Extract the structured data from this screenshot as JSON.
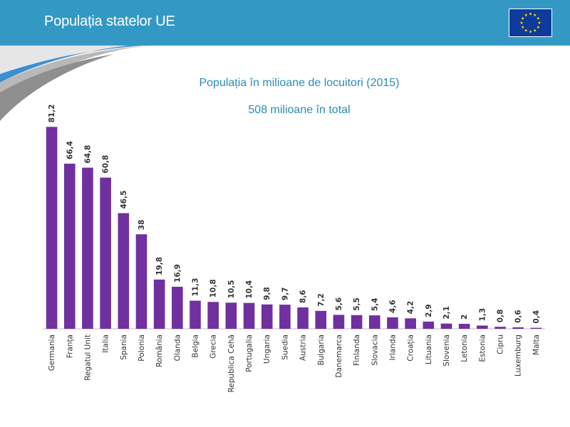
{
  "header": {
    "title": "Populația statelor UE",
    "flag_icon": "eu-flag-icon",
    "colors": {
      "bar": "#3399c4",
      "flag": "#0e3a9c",
      "stars": "#ffdd00"
    }
  },
  "chart_data": {
    "type": "bar",
    "title": "Populația în milioane de locuitori (2015)",
    "subtitle": "508 milioane în total",
    "xlabel": "",
    "ylabel": "",
    "grid": false,
    "legend": "none",
    "ylim": [
      0,
      85
    ],
    "bar_color": "#7030a0",
    "categories": [
      "Germania",
      "Franța",
      "Regatul Unit",
      "Italia",
      "Spania",
      "Polonia",
      "România",
      "Olanda",
      "Belgia",
      "Grecia",
      "Republica Cehă",
      "Portugalia",
      "Ungaria",
      "Suedia",
      "Austria",
      "Bulgaria",
      "Danemarca",
      "Finlanda",
      "Slovacia",
      "Irlanda",
      "Croația",
      "Lituania",
      "Slovenia",
      "Letonia",
      "Estonia",
      "Cipru",
      "Luxemburg",
      "Malta"
    ],
    "values": [
      81.2,
      66.4,
      64.8,
      60.8,
      46.5,
      38,
      19.8,
      16.9,
      11.3,
      10.8,
      10.5,
      10.4,
      9.8,
      9.7,
      8.6,
      7.2,
      5.6,
      5.5,
      5.4,
      4.6,
      4.2,
      2.9,
      2.1,
      2,
      1.3,
      0.8,
      0.6,
      0.4
    ],
    "value_labels": [
      "81,2",
      "66,4",
      "64,8",
      "60,8",
      "46,5",
      "38",
      "19,8",
      "16,9",
      "11,3",
      "10,8",
      "10,5",
      "10,4",
      "9,8",
      "9,7",
      "8,6",
      "7,2",
      "5,6",
      "5,5",
      "5,4",
      "4,6",
      "4,2",
      "2,9",
      "2,1",
      "2",
      "1,3",
      "0,8",
      "0,6",
      "0,4"
    ]
  }
}
